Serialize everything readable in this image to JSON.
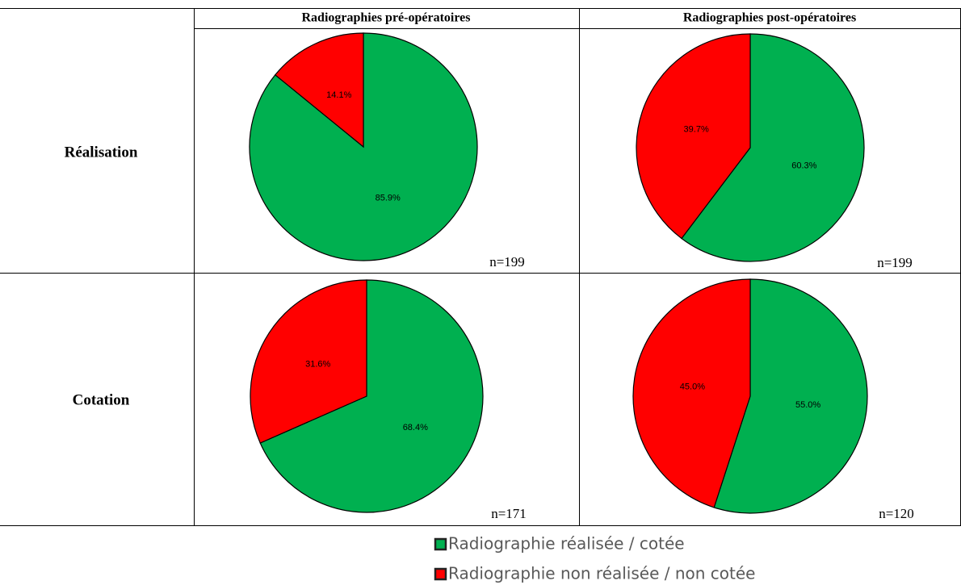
{
  "columns": [
    "Radiographies pré-opératoires",
    "Radiographies post-opératoires"
  ],
  "rows": [
    "Réalisation",
    "Cotation"
  ],
  "legend": [
    {
      "name": "Radiographie réalisée / cotée",
      "color": "#00b050"
    },
    {
      "name": "Radiographie non réalisée / non cotée",
      "color": "#ff0000"
    }
  ],
  "chart_data": [
    {
      "type": "pie",
      "values": [
        85.9,
        14.1
      ],
      "value_labels": [
        "85.9%",
        "14.1%"
      ],
      "note": "n=199"
    },
    {
      "type": "pie",
      "values": [
        60.3,
        39.7
      ],
      "value_labels": [
        "60.3%",
        "39.7%"
      ],
      "note": "n=199"
    },
    {
      "type": "pie",
      "values": [
        68.4,
        31.6
      ],
      "value_labels": [
        "68.4%",
        "31.6%"
      ],
      "note": "n=171"
    },
    {
      "type": "pie",
      "values": [
        55.0,
        45.0
      ],
      "value_labels": [
        "55.0%",
        "45.0%"
      ],
      "note": "n=120"
    }
  ]
}
